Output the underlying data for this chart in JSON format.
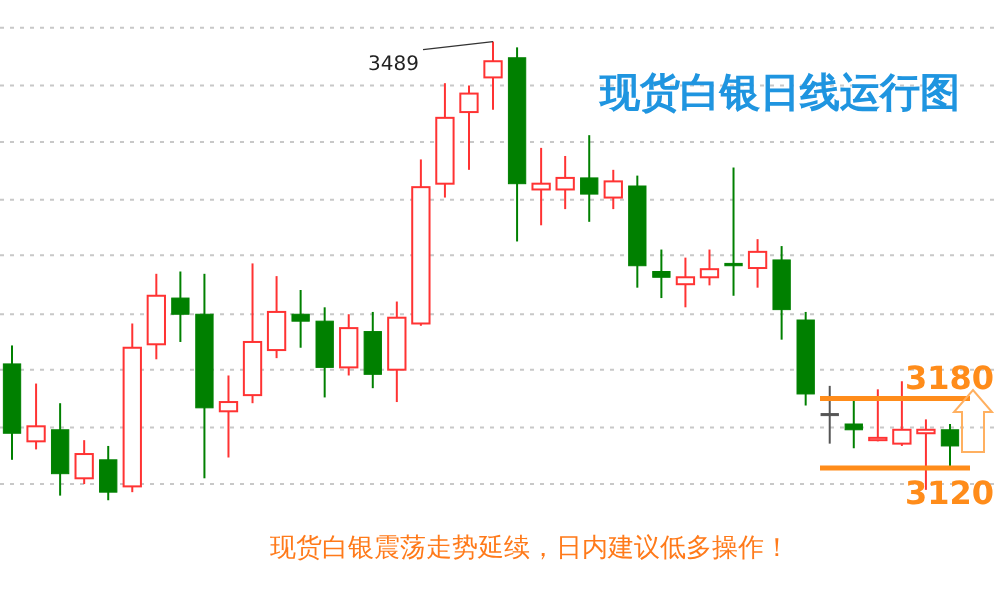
{
  "chart_data": {
    "type": "candlestick",
    "title": "现货白银日线运行图",
    "categories": [
      null,
      null,
      null,
      null,
      null,
      null,
      null,
      null,
      null,
      null,
      null,
      null,
      null,
      null,
      null,
      null,
      null,
      null,
      null,
      null,
      null,
      null,
      null,
      null,
      null,
      null,
      null,
      null,
      null,
      null,
      null,
      null,
      null,
      null,
      null,
      null,
      null,
      null,
      null,
      null
    ],
    "ohlc": [
      [
        3210,
        3226,
        3127,
        3150
      ],
      [
        3143,
        3193,
        3136,
        3156
      ],
      [
        3153,
        3176,
        3096,
        3115
      ],
      [
        3111,
        3144,
        3106,
        3132
      ],
      [
        3127,
        3139,
        3092,
        3099
      ],
      [
        3104,
        3245,
        3099,
        3224
      ],
      [
        3227,
        3288,
        3214,
        3269
      ],
      [
        3267,
        3290,
        3229,
        3253
      ],
      [
        3253,
        3288,
        3111,
        3172
      ],
      [
        3169,
        3200,
        3129,
        3177
      ],
      [
        3183,
        3297,
        3176,
        3229
      ],
      [
        3222,
        3286,
        3215,
        3255
      ],
      [
        3253,
        3274,
        3224,
        3247
      ],
      [
        3247,
        3259,
        3181,
        3207
      ],
      [
        3207,
        3253,
        3200,
        3241
      ],
      [
        3238,
        3255,
        3189,
        3201
      ],
      [
        3205,
        3264,
        3177,
        3250
      ],
      [
        3245,
        3387,
        3243,
        3363
      ],
      [
        3366,
        3453,
        3354,
        3423
      ],
      [
        3428,
        3451,
        3378,
        3444
      ],
      [
        3458,
        3489,
        3430,
        3472
      ],
      [
        3475,
        3484,
        3316,
        3366
      ],
      [
        3361,
        3397,
        3330,
        3366
      ],
      [
        3361,
        3390,
        3344,
        3371
      ],
      [
        3371,
        3408,
        3333,
        3357
      ],
      [
        3354,
        3378,
        3344,
        3368
      ],
      [
        3364,
        3373,
        3276,
        3295
      ],
      [
        3290,
        3309,
        3267,
        3285
      ],
      [
        3279,
        3302,
        3259,
        3285
      ],
      [
        3285,
        3309,
        3278,
        3292
      ],
      [
        3297,
        3380,
        3269,
        3295
      ],
      [
        3293,
        3318,
        3276,
        3307
      ],
      [
        3300,
        3312,
        3231,
        3257
      ],
      [
        3248,
        3255,
        3174,
        3184
      ],
      [
        3167,
        3191,
        3141,
        3167
      ],
      [
        3158,
        3181,
        3137,
        3153
      ],
      [
        3144,
        3188,
        3143,
        3146
      ],
      [
        3141,
        3195,
        3139,
        3153
      ],
      [
        3150,
        3162,
        3101,
        3153
      ],
      [
        3153,
        3158,
        3120,
        3139
      ]
    ],
    "colors": [
      "#008000",
      "#ff3333",
      "#008000",
      "#ff3333",
      "#008000",
      "#ff3333",
      "#ff3333",
      "#008000",
      "#008000",
      "#ff3333",
      "#ff3333",
      "#ff3333",
      "#008000",
      "#008000",
      "#ff3333",
      "#008000",
      "#ff3333",
      "#ff3333",
      "#ff3333",
      "#ff3333",
      "#ff3333",
      "#008000",
      "#ff3333",
      "#ff3333",
      "#008000",
      "#ff3333",
      "#008000",
      "#008000",
      "#ff3333",
      "#ff3333",
      "#008000",
      "#ff3333",
      "#008000",
      "#008000",
      "#555555",
      "#008000",
      "#ff3333",
      "#ff3333",
      "#ff3333",
      "#008000"
    ],
    "ylim": [
      2997,
      3525
    ],
    "yticks": [
      {
        "value": 3501,
        "label": null
      },
      {
        "value": 3451,
        "label": null
      },
      {
        "value": 3402,
        "label": null
      },
      {
        "value": 3352,
        "label": null
      },
      {
        "value": 3304,
        "label": null
      },
      {
        "value": 3253,
        "label": null
      },
      {
        "value": 3205,
        "label": null
      },
      {
        "value": 3155,
        "label": null
      },
      {
        "value": 3106,
        "label": null
      }
    ],
    "grid": "y",
    "ref_lines": [
      {
        "axis": "y",
        "value": 3180,
        "label": "3180",
        "color": "#ff8c1a"
      },
      {
        "axis": "y",
        "value": 3120,
        "label": "3120",
        "color": "#ff8c1a"
      }
    ],
    "annotations": [
      "3489",
      "现货白银震荡走势延续，日内建议低多操作！"
    ]
  }
}
